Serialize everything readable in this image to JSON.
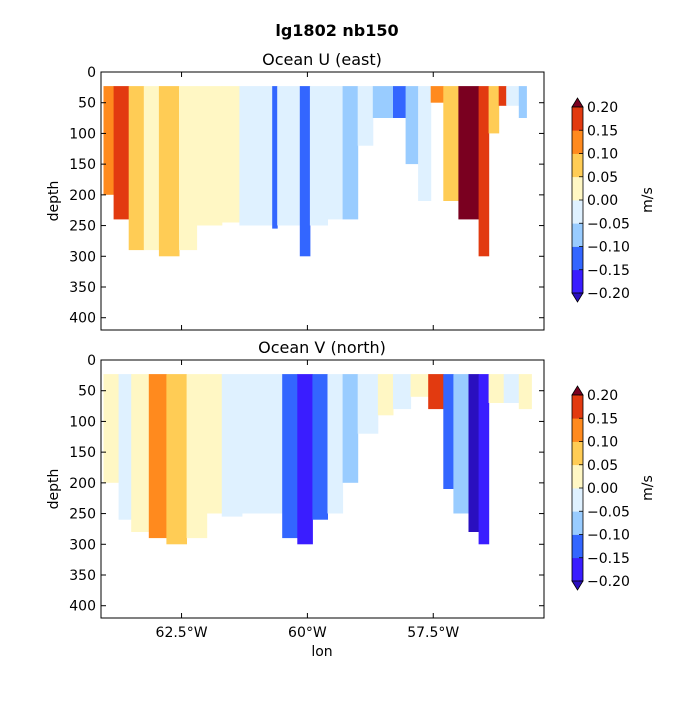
{
  "suptitle": "lg1802 nb150",
  "colorbar": {
    "label": "m/s",
    "levels": [
      -0.2,
      -0.15,
      -0.1,
      -0.05,
      0.0,
      0.05,
      0.1,
      0.15,
      0.2
    ],
    "tick_labels": [
      "−0.20",
      "−0.15",
      "−0.10",
      "−0.05",
      "0.00",
      "0.05",
      "0.10",
      "0.15",
      "0.20"
    ],
    "colors": [
      "#3a1dff",
      "#3366ff",
      "#99ccff",
      "#dff1ff",
      "#fff7c4",
      "#ffcc55",
      "#ff8a1e",
      "#e23a10"
    ],
    "under_color": "#2a0fbf",
    "over_color": "#7a0020",
    "extend": "both"
  },
  "chart_data": [
    {
      "type": "heatmap",
      "title": "Ocean U (east)",
      "xlabel": "",
      "ylabel": "depth",
      "xlim": [
        -64.1,
        -55.3
      ],
      "ylim": [
        420,
        0
      ],
      "xticks": [
        -62.5,
        -60.0,
        -57.5
      ],
      "xtick_labels": [
        "62.5°W",
        "60°W",
        "57.5°W"
      ],
      "yticks": [
        0,
        50,
        100,
        150,
        200,
        250,
        300,
        350,
        400
      ],
      "ytick_labels": [
        "0",
        "50",
        "100",
        "150",
        "200",
        "250",
        "300",
        "350",
        "400"
      ],
      "show_xtick_labels": false,
      "units": "m/s",
      "bands": [
        {
          "x0": -64.05,
          "x1": -63.85,
          "dmax": 200,
          "value": 0.1
        },
        {
          "x0": -63.85,
          "x1": -63.55,
          "dmax": 240,
          "value": 0.16
        },
        {
          "x0": -63.55,
          "x1": -63.25,
          "dmax": 290,
          "value": 0.07
        },
        {
          "x0": -63.25,
          "x1": -62.95,
          "dmax": 290,
          "value": 0.03
        },
        {
          "x0": -62.95,
          "x1": -62.55,
          "dmax": 300,
          "value": 0.06
        },
        {
          "x0": -62.55,
          "x1": -62.2,
          "dmax": 290,
          "value": 0.03
        },
        {
          "x0": -62.2,
          "x1": -61.7,
          "dmax": 250,
          "value": 0.02
        },
        {
          "x0": -61.7,
          "x1": -61.35,
          "dmax": 245,
          "value": 0.03
        },
        {
          "x0": -61.35,
          "x1": -60.95,
          "dmax": 250,
          "value": -0.03
        },
        {
          "x0": -60.95,
          "x1": -60.7,
          "dmax": 250,
          "value": -0.03
        },
        {
          "x0": -60.7,
          "x1": -60.6,
          "dmax": 255,
          "value": -0.12
        },
        {
          "x0": -60.6,
          "x1": -60.15,
          "dmax": 250,
          "value": -0.03
        },
        {
          "x0": -60.15,
          "x1": -59.95,
          "dmax": 300,
          "value": -0.14
        },
        {
          "x0": -59.95,
          "x1": -59.6,
          "dmax": 250,
          "value": -0.04
        },
        {
          "x0": -59.6,
          "x1": -59.3,
          "dmax": 240,
          "value": -0.03
        },
        {
          "x0": -59.3,
          "x1": -59.0,
          "dmax": 240,
          "value": -0.07
        },
        {
          "x0": -59.0,
          "x1": -58.7,
          "dmax": 120,
          "value": -0.04
        },
        {
          "x0": -58.7,
          "x1": -58.3,
          "dmax": 75,
          "value": -0.07
        },
        {
          "x0": -58.3,
          "x1": -58.05,
          "dmax": 75,
          "value": -0.14
        },
        {
          "x0": -58.05,
          "x1": -57.8,
          "dmax": 150,
          "value": -0.07
        },
        {
          "x0": -57.8,
          "x1": -57.55,
          "dmax": 210,
          "value": -0.04
        },
        {
          "x0": -57.55,
          "x1": -57.3,
          "dmax": 50,
          "value": 0.13
        },
        {
          "x0": -57.3,
          "x1": -57.0,
          "dmax": 210,
          "value": 0.05
        },
        {
          "x0": -57.0,
          "x1": -56.6,
          "dmax": 240,
          "value": 0.22
        },
        {
          "x0": -56.6,
          "x1": -56.4,
          "dmax": 300,
          "value": 0.17
        },
        {
          "x0": -56.4,
          "x1": -56.2,
          "dmax": 100,
          "value": 0.06
        },
        {
          "x0": -56.2,
          "x1": -56.05,
          "dmax": 55,
          "value": 0.16
        },
        {
          "x0": -56.05,
          "x1": -55.8,
          "dmax": 55,
          "value": -0.03
        },
        {
          "x0": -55.8,
          "x1": -55.65,
          "dmax": 75,
          "value": -0.07
        }
      ]
    },
    {
      "type": "heatmap",
      "title": "Ocean V (north)",
      "xlabel": "lon",
      "ylabel": "depth",
      "xlim": [
        -64.1,
        -55.3
      ],
      "ylim": [
        420,
        0
      ],
      "xticks": [
        -62.5,
        -60.0,
        -57.5
      ],
      "xtick_labels": [
        "62.5°W",
        "60°W",
        "57.5°W"
      ],
      "yticks": [
        0,
        50,
        100,
        150,
        200,
        250,
        300,
        350,
        400
      ],
      "ytick_labels": [
        "0",
        "50",
        "100",
        "150",
        "200",
        "250",
        "300",
        "350",
        "400"
      ],
      "show_xtick_labels": true,
      "units": "m/s",
      "bands": [
        {
          "x0": -64.05,
          "x1": -63.75,
          "dmax": 200,
          "value": 0.02
        },
        {
          "x0": -63.75,
          "x1": -63.5,
          "dmax": 260,
          "value": -0.03
        },
        {
          "x0": -63.5,
          "x1": -63.15,
          "dmax": 280,
          "value": 0.03
        },
        {
          "x0": -63.15,
          "x1": -62.8,
          "dmax": 290,
          "value": 0.11
        },
        {
          "x0": -62.8,
          "x1": -62.4,
          "dmax": 300,
          "value": 0.07
        },
        {
          "x0": -62.4,
          "x1": -62.0,
          "dmax": 290,
          "value": 0.03
        },
        {
          "x0": -62.0,
          "x1": -61.7,
          "dmax": 250,
          "value": 0.02
        },
        {
          "x0": -61.7,
          "x1": -61.3,
          "dmax": 255,
          "value": -0.03
        },
        {
          "x0": -61.3,
          "x1": -60.9,
          "dmax": 250,
          "value": -0.04
        },
        {
          "x0": -60.9,
          "x1": -60.5,
          "dmax": 250,
          "value": -0.03
        },
        {
          "x0": -60.5,
          "x1": -60.2,
          "dmax": 290,
          "value": -0.12
        },
        {
          "x0": -60.2,
          "x1": -59.9,
          "dmax": 300,
          "value": -0.19
        },
        {
          "x0": -59.9,
          "x1": -59.6,
          "dmax": 260,
          "value": -0.12
        },
        {
          "x0": -59.6,
          "x1": -59.3,
          "dmax": 250,
          "value": -0.04
        },
        {
          "x0": -59.3,
          "x1": -59.0,
          "dmax": 200,
          "value": -0.07
        },
        {
          "x0": -59.0,
          "x1": -58.6,
          "dmax": 120,
          "value": -0.04
        },
        {
          "x0": -58.6,
          "x1": -58.3,
          "dmax": 90,
          "value": 0.02
        },
        {
          "x0": -58.3,
          "x1": -57.95,
          "dmax": 80,
          "value": -0.03
        },
        {
          "x0": -57.95,
          "x1": -57.6,
          "dmax": 60,
          "value": 0.02
        },
        {
          "x0": -57.6,
          "x1": -57.3,
          "dmax": 80,
          "value": 0.18
        },
        {
          "x0": -57.3,
          "x1": -57.1,
          "dmax": 210,
          "value": -0.14
        },
        {
          "x0": -57.1,
          "x1": -56.8,
          "dmax": 250,
          "value": -0.07
        },
        {
          "x0": -56.8,
          "x1": -56.6,
          "dmax": 280,
          "value": -0.22
        },
        {
          "x0": -56.6,
          "x1": -56.4,
          "dmax": 300,
          "value": -0.17
        },
        {
          "x0": -56.4,
          "x1": -56.1,
          "dmax": 70,
          "value": 0.03
        },
        {
          "x0": -56.1,
          "x1": -55.8,
          "dmax": 70,
          "value": -0.03
        },
        {
          "x0": -55.8,
          "x1": -55.55,
          "dmax": 80,
          "value": 0.03
        }
      ]
    }
  ]
}
